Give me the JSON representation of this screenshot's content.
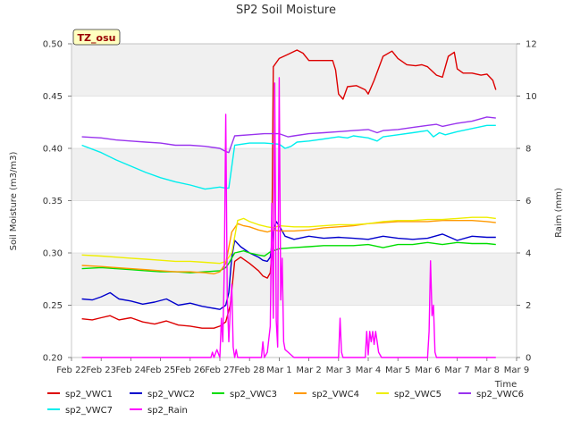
{
  "chart_data": {
    "type": "line",
    "title": "SP2 Soil Moisture",
    "ylabel": "Soil Moisture (m3/m3)",
    "y2label": "Raim (mm)",
    "xlabel": "Time",
    "site_tag": "TZ_osu",
    "ylim": [
      0.2,
      0.5
    ],
    "y2lim": [
      0,
      12
    ],
    "xlim": [
      0,
      15
    ],
    "x_ticks": [
      0,
      1,
      2,
      3,
      4,
      5,
      6,
      7,
      8,
      9,
      10,
      11,
      12,
      13,
      14,
      15
    ],
    "x_tick_labels": [
      "Feb 22",
      "Feb 23",
      "Feb 24",
      "Feb 25",
      "Feb 26",
      "Feb 27",
      "Feb 28",
      "Mar 1",
      "Mar 2",
      "Mar 3",
      "Mar 4",
      "Mar 5",
      "Mar 6",
      "Mar 7",
      "Mar 8",
      "Mar 9"
    ],
    "y_ticks": [
      0.2,
      0.25,
      0.3,
      0.35,
      0.4,
      0.45,
      0.5
    ],
    "y_tick_labels": [
      "0.20",
      "0.25",
      "0.30",
      "0.35",
      "0.40",
      "0.45",
      "0.50"
    ],
    "y2_ticks": [
      0,
      2,
      4,
      6,
      8,
      10,
      12
    ],
    "y2_tick_labels": [
      "0",
      "2",
      "4",
      "6",
      "8",
      "10",
      "12"
    ],
    "series": [
      {
        "name": "sp2_VWC1",
        "color": "#dd0000",
        "axis": "left",
        "x": [
          0.35,
          0.7,
          1.0,
          1.3,
          1.6,
          2.0,
          2.4,
          2.8,
          3.2,
          3.6,
          4.0,
          4.4,
          4.8,
          5.0,
          5.1,
          5.2,
          5.35,
          5.5,
          5.7,
          6.0,
          6.3,
          6.45,
          6.6,
          6.7,
          6.75,
          6.8,
          7.0,
          7.3,
          7.6,
          7.8,
          8.0,
          8.3,
          8.6,
          8.8,
          8.9,
          9.0,
          9.15,
          9.3,
          9.6,
          9.9,
          10.0,
          10.2,
          10.5,
          10.8,
          11.0,
          11.3,
          11.6,
          11.8,
          12.0,
          12.3,
          12.5,
          12.7,
          12.9,
          13.0,
          13.2,
          13.5,
          13.8,
          14.0,
          14.2,
          14.3
        ],
        "y": [
          0.237,
          0.236,
          0.238,
          0.24,
          0.236,
          0.238,
          0.234,
          0.232,
          0.235,
          0.231,
          0.23,
          0.228,
          0.228,
          0.23,
          0.232,
          0.234,
          0.25,
          0.292,
          0.296,
          0.29,
          0.283,
          0.278,
          0.276,
          0.281,
          0.3,
          0.478,
          0.486,
          0.49,
          0.494,
          0.491,
          0.484,
          0.484,
          0.484,
          0.484,
          0.475,
          0.452,
          0.447,
          0.459,
          0.46,
          0.456,
          0.452,
          0.465,
          0.488,
          0.493,
          0.486,
          0.48,
          0.479,
          0.48,
          0.478,
          0.47,
          0.468,
          0.488,
          0.492,
          0.476,
          0.472,
          0.472,
          0.47,
          0.471,
          0.465,
          0.456
        ]
      },
      {
        "name": "sp2_VWC2",
        "color": "#0000cc",
        "axis": "left",
        "x": [
          0.35,
          0.7,
          1.0,
          1.3,
          1.6,
          2.0,
          2.4,
          2.8,
          3.2,
          3.6,
          4.0,
          4.4,
          4.8,
          5.0,
          5.2,
          5.3,
          5.4,
          5.5,
          5.7,
          6.0,
          6.3,
          6.45,
          6.6,
          6.7,
          6.8,
          6.9,
          7.0,
          7.2,
          7.5,
          8.0,
          8.5,
          9.0,
          9.5,
          10.0,
          10.5,
          11.0,
          11.5,
          12.0,
          12.5,
          13.0,
          13.5,
          14.0,
          14.3
        ],
        "y": [
          0.256,
          0.255,
          0.258,
          0.262,
          0.256,
          0.254,
          0.251,
          0.253,
          0.256,
          0.25,
          0.252,
          0.249,
          0.247,
          0.246,
          0.25,
          0.262,
          0.296,
          0.312,
          0.306,
          0.3,
          0.296,
          0.293,
          0.292,
          0.296,
          0.32,
          0.33,
          0.326,
          0.316,
          0.313,
          0.316,
          0.314,
          0.315,
          0.314,
          0.313,
          0.316,
          0.314,
          0.313,
          0.314,
          0.318,
          0.312,
          0.316,
          0.315,
          0.315
        ]
      },
      {
        "name": "sp2_VWC3",
        "color": "#00dd00",
        "axis": "left",
        "x": [
          0.35,
          1.0,
          1.5,
          2.0,
          2.5,
          3.0,
          3.5,
          4.0,
          4.5,
          5.0,
          5.2,
          5.3,
          5.5,
          5.8,
          6.0,
          6.3,
          6.5,
          6.7,
          7.0,
          7.5,
          8.0,
          8.5,
          9.0,
          9.5,
          10.0,
          10.5,
          11.0,
          11.5,
          12.0,
          12.5,
          13.0,
          13.5,
          14.0,
          14.3
        ],
        "y": [
          0.285,
          0.286,
          0.285,
          0.284,
          0.283,
          0.282,
          0.282,
          0.281,
          0.282,
          0.283,
          0.286,
          0.29,
          0.3,
          0.302,
          0.3,
          0.298,
          0.297,
          0.301,
          0.304,
          0.305,
          0.306,
          0.307,
          0.307,
          0.307,
          0.308,
          0.305,
          0.308,
          0.308,
          0.31,
          0.308,
          0.31,
          0.309,
          0.309,
          0.308
        ]
      },
      {
        "name": "sp2_VWC4",
        "color": "#ff9900",
        "axis": "left",
        "x": [
          0.35,
          1.0,
          1.5,
          2.0,
          2.5,
          3.0,
          3.5,
          4.0,
          4.5,
          4.8,
          5.0,
          5.2,
          5.4,
          5.6,
          5.8,
          6.0,
          6.3,
          6.6,
          6.8,
          7.0,
          7.5,
          8.0,
          8.5,
          9.0,
          9.5,
          10.0,
          10.5,
          11.0,
          11.5,
          12.0,
          12.5,
          13.0,
          13.5,
          14.0,
          14.3
        ],
        "y": [
          0.288,
          0.287,
          0.286,
          0.285,
          0.284,
          0.283,
          0.282,
          0.282,
          0.281,
          0.28,
          0.282,
          0.29,
          0.32,
          0.328,
          0.326,
          0.325,
          0.322,
          0.32,
          0.322,
          0.321,
          0.321,
          0.322,
          0.324,
          0.325,
          0.326,
          0.328,
          0.329,
          0.33,
          0.33,
          0.33,
          0.331,
          0.331,
          0.331,
          0.33,
          0.329
        ]
      },
      {
        "name": "sp2_VWC5",
        "color": "#eeee00",
        "axis": "left",
        "x": [
          0.35,
          1.0,
          1.5,
          2.0,
          2.5,
          3.0,
          3.5,
          4.0,
          4.5,
          5.0,
          5.2,
          5.4,
          5.6,
          5.8,
          6.0,
          6.3,
          6.6,
          6.8,
          7.0,
          7.5,
          8.0,
          8.5,
          9.0,
          9.5,
          10.0,
          10.5,
          11.0,
          11.5,
          12.0,
          12.5,
          13.0,
          13.5,
          14.0,
          14.3
        ],
        "y": [
          0.298,
          0.297,
          0.296,
          0.295,
          0.294,
          0.293,
          0.292,
          0.292,
          0.291,
          0.29,
          0.292,
          0.3,
          0.331,
          0.333,
          0.33,
          0.327,
          0.325,
          0.324,
          0.326,
          0.325,
          0.325,
          0.326,
          0.327,
          0.327,
          0.328,
          0.33,
          0.331,
          0.331,
          0.332,
          0.332,
          0.333,
          0.334,
          0.334,
          0.333
        ]
      },
      {
        "name": "sp2_VWC6",
        "color": "#9933ee",
        "axis": "left",
        "x": [
          0.35,
          1.0,
          1.5,
          2.0,
          2.5,
          3.0,
          3.5,
          4.0,
          4.5,
          5.0,
          5.2,
          5.3,
          5.5,
          6.0,
          6.5,
          7.0,
          7.3,
          7.5,
          8.0,
          8.5,
          9.0,
          9.5,
          10.0,
          10.3,
          10.5,
          11.0,
          11.5,
          12.0,
          12.3,
          12.5,
          13.0,
          13.5,
          14.0,
          14.3
        ],
        "y": [
          0.411,
          0.41,
          0.408,
          0.407,
          0.406,
          0.405,
          0.403,
          0.403,
          0.402,
          0.4,
          0.397,
          0.396,
          0.412,
          0.413,
          0.414,
          0.414,
          0.411,
          0.412,
          0.414,
          0.415,
          0.416,
          0.417,
          0.418,
          0.415,
          0.417,
          0.418,
          0.42,
          0.422,
          0.423,
          0.421,
          0.424,
          0.426,
          0.43,
          0.429
        ]
      },
      {
        "name": "sp2_VWC7",
        "color": "#00eeee",
        "axis": "left",
        "x": [
          0.35,
          1.0,
          1.5,
          2.0,
          2.5,
          3.0,
          3.5,
          4.0,
          4.5,
          5.0,
          5.2,
          5.3,
          5.5,
          6.0,
          6.5,
          7.0,
          7.2,
          7.4,
          7.6,
          8.0,
          8.5,
          9.0,
          9.3,
          9.5,
          10.0,
          10.3,
          10.5,
          11.0,
          11.5,
          12.0,
          12.2,
          12.4,
          12.6,
          13.0,
          13.5,
          14.0,
          14.3
        ],
        "y": [
          0.403,
          0.396,
          0.389,
          0.383,
          0.377,
          0.372,
          0.368,
          0.365,
          0.361,
          0.363,
          0.362,
          0.362,
          0.403,
          0.405,
          0.405,
          0.404,
          0.4,
          0.402,
          0.406,
          0.407,
          0.409,
          0.411,
          0.41,
          0.412,
          0.41,
          0.407,
          0.411,
          0.413,
          0.415,
          0.417,
          0.411,
          0.415,
          0.413,
          0.416,
          0.419,
          0.422,
          0.422
        ]
      },
      {
        "name": "sp2_Rain",
        "color": "#ff00ff",
        "axis": "right",
        "x": [
          0.35,
          4.7,
          4.75,
          4.8,
          4.9,
          5.0,
          5.05,
          5.1,
          5.15,
          5.2,
          5.25,
          5.3,
          5.35,
          5.4,
          5.45,
          5.5,
          5.55,
          5.6,
          6.4,
          6.45,
          6.5,
          6.6,
          6.7,
          6.75,
          6.8,
          6.85,
          6.9,
          6.95,
          7.0,
          7.05,
          7.1,
          7.15,
          7.2,
          7.3,
          7.4,
          7.5,
          7.6,
          9.0,
          9.05,
          9.1,
          9.15,
          9.3,
          9.9,
          9.95,
          10.0,
          10.05,
          10.1,
          10.15,
          10.2,
          10.25,
          10.3,
          10.35,
          10.45,
          10.55,
          12.0,
          12.05,
          12.1,
          12.15,
          12.2,
          12.25,
          12.3,
          12.4,
          14.3
        ],
        "y": [
          0,
          0,
          0.2,
          0,
          0.3,
          0,
          1.5,
          0.6,
          3.5,
          9.3,
          2.3,
          0.6,
          1.8,
          2.8,
          0.4,
          0,
          0.3,
          0,
          0,
          0.6,
          0,
          0.2,
          1.2,
          5.9,
          1.5,
          10.5,
          1.4,
          0.4,
          10.7,
          2.2,
          3.8,
          0.6,
          0.3,
          0.2,
          0.1,
          0,
          0,
          0,
          1.5,
          0.2,
          0,
          0,
          0,
          1.0,
          0.1,
          1.0,
          0.6,
          1.0,
          0.5,
          1.0,
          0.6,
          0.2,
          0,
          0,
          0,
          1.0,
          3.7,
          1.6,
          2.0,
          0.2,
          0,
          0,
          0
        ]
      }
    ]
  }
}
